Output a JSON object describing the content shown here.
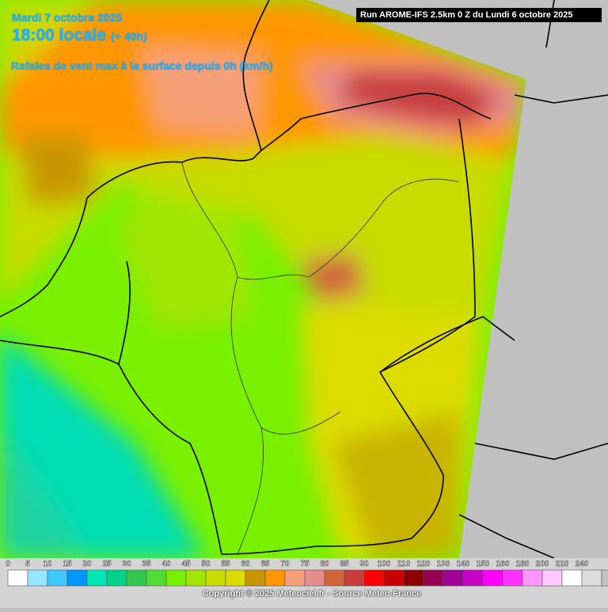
{
  "header": {
    "date": "Mardi 7 octobre 2025",
    "time": "18:00 locale",
    "lead": "(+ 40h)",
    "parameter": "Rafales de vent max à la surface depuis 0h (km/h)",
    "run": "Run AROME-IFS 2.5km 0 Z du Lundi 6 octobre 2025"
  },
  "legend": {
    "items": [
      {
        "label": 0,
        "color": "#ffffff"
      },
      {
        "label": 5,
        "color": "#96e6ff"
      },
      {
        "label": 10,
        "color": "#3cc8ff"
      },
      {
        "label": 15,
        "color": "#0096ff"
      },
      {
        "label": 20,
        "color": "#00e6b4"
      },
      {
        "label": 25,
        "color": "#00d28c"
      },
      {
        "label": 30,
        "color": "#32c850"
      },
      {
        "label": 35,
        "color": "#50dc32"
      },
      {
        "label": 40,
        "color": "#78f000"
      },
      {
        "label": 45,
        "color": "#a0e600"
      },
      {
        "label": 50,
        "color": "#c8dc00"
      },
      {
        "label": 55,
        "color": "#dcdc00"
      },
      {
        "label": 60,
        "color": "#c89600"
      },
      {
        "label": 65,
        "color": "#ff9600"
      },
      {
        "label": 70,
        "color": "#f5a078"
      },
      {
        "label": 75,
        "color": "#e68c8c"
      },
      {
        "label": 80,
        "color": "#d2643c"
      },
      {
        "label": 85,
        "color": "#c83c3c"
      },
      {
        "label": 90,
        "color": "#ff0000"
      },
      {
        "label": 100,
        "color": "#c80000"
      },
      {
        "label": 110,
        "color": "#8c0000"
      },
      {
        "label": 120,
        "color": "#960050"
      },
      {
        "label": 130,
        "color": "#a00096"
      },
      {
        "label": 140,
        "color": "#c800c8"
      },
      {
        "label": 150,
        "color": "#ff00ff"
      },
      {
        "label": 160,
        "color": "#ff32ff"
      },
      {
        "label": 180,
        "color": "#ff96ff"
      },
      {
        "label": 200,
        "color": "#ffc8ff"
      },
      {
        "label": 220,
        "color": "#ffffff"
      },
      {
        "label": 240,
        "color": "#dcdcdc"
      }
    ]
  },
  "footer": {
    "copyright": "Copyright © 2025 Meteociel.fr - Source Meteo-France"
  }
}
